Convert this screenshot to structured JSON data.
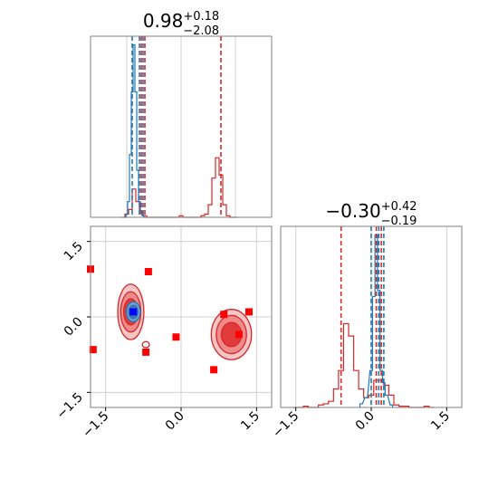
{
  "chart_data": [
    {
      "type": "histogram",
      "panel": "top-left (parameter 1 marginal)",
      "title": {
        "value": "0.98",
        "upper": "+0.18",
        "lower": "−2.08"
      },
      "xlim": [
        -2.5,
        2.5
      ],
      "grid": true,
      "series": [
        {
          "color": "#d62728",
          "x": [
            -1.6,
            -1.5,
            -1.4,
            -1.3,
            -1.2,
            -1.1,
            -1.0,
            -0.9,
            -0.8,
            -0.7,
            -0.6,
            -0.5,
            -0.4,
            -0.3,
            -0.2,
            -0.1,
            0.0,
            0.1,
            0.2,
            0.3,
            0.4,
            0.5,
            0.6,
            0.7,
            0.8,
            0.9,
            1.0,
            1.1,
            1.2,
            1.3,
            1.4,
            1.5
          ],
          "values": [
            0,
            2,
            5,
            18,
            10,
            3,
            1,
            0,
            0,
            0,
            0,
            0,
            0,
            0,
            0,
            0,
            1,
            0,
            0,
            0,
            0,
            0,
            1,
            2,
            8,
            25,
            38,
            27,
            8,
            1,
            0,
            0
          ]
        },
        {
          "color": "#1f77b4",
          "x": [
            -1.5,
            -1.45,
            -1.4,
            -1.35,
            -1.3,
            -1.25,
            -1.2,
            -1.15,
            -1.1,
            -1.05,
            -1.0
          ],
          "values": [
            2,
            10,
            40,
            80,
            110,
            80,
            30,
            10,
            4,
            1,
            0
          ]
        }
      ],
      "vlines": [
        {
          "color": "#d62728",
          "x": [
            -1.1,
            -1.0,
            1.1
          ]
        },
        {
          "color": "#1f77b4",
          "x": [
            -1.35,
            -1.15,
            -1.05
          ]
        }
      ]
    },
    {
      "type": "histogram",
      "panel": "bottom-right (parameter 2 marginal)",
      "title": {
        "value": "−0.30",
        "upper": "+0.42",
        "lower": "−0.19"
      },
      "xlim": [
        -1.8,
        1.8
      ],
      "xticks": [
        "−1.5",
        "0.0",
        "1.5"
      ],
      "grid": true,
      "series": [
        {
          "color": "#d62728",
          "x": [
            -1.5,
            -1.4,
            -1.3,
            -1.2,
            -1.1,
            -1.0,
            -0.9,
            -0.8,
            -0.7,
            -0.6,
            -0.5,
            -0.4,
            -0.3,
            -0.2,
            -0.1,
            0.0,
            0.1,
            0.2,
            0.3,
            0.4,
            0.5,
            0.6,
            0.7,
            0.8,
            0.9,
            1.0,
            1.1,
            1.2
          ],
          "values": [
            0,
            0,
            1,
            0,
            0,
            2,
            3,
            5,
            15,
            30,
            68,
            58,
            30,
            15,
            8,
            10,
            22,
            22,
            18,
            10,
            2,
            1,
            1,
            0,
            0,
            0,
            1,
            0
          ]
        },
        {
          "color": "#1f77b4",
          "x": [
            -0.2,
            -0.1,
            0.0,
            0.05,
            0.1,
            0.15,
            0.2,
            0.25,
            0.3,
            0.4
          ],
          "values": [
            3,
            8,
            30,
            90,
            140,
            95,
            30,
            20,
            10,
            2
          ]
        }
      ],
      "vlines": [
        {
          "color": "#d62728",
          "x": [
            -0.6,
            0.1,
            0.2
          ]
        },
        {
          "color": "#1f77b4",
          "x": [
            0.0,
            0.15,
            0.25
          ]
        }
      ]
    },
    {
      "type": "scatter",
      "panel": "bottom-left (2D contour / scatter)",
      "xlim": [
        -1.8,
        1.8
      ],
      "ylim": [
        -1.8,
        1.8
      ],
      "xticks": [
        "−1.5",
        "0.0",
        "1.5"
      ],
      "yticks": [
        "−1.5",
        "0.0",
        "1.5"
      ],
      "grid": true,
      "contours": [
        {
          "color": "#d62728",
          "cx": -1.0,
          "cy": 0.1,
          "rx": [
            0.26,
            0.2,
            0.14
          ],
          "ry": [
            0.55,
            0.4,
            0.26
          ]
        },
        {
          "color": "#d62728",
          "cx": 1.0,
          "cy": -0.35,
          "rx": [
            0.4,
            0.3,
            0.2
          ],
          "ry": [
            0.5,
            0.38,
            0.24
          ]
        },
        {
          "color": "#d62728",
          "cx": -0.7,
          "cy": -0.55,
          "rx": [
            0.07
          ],
          "ry": [
            0.06
          ]
        },
        {
          "color": "#d62728",
          "cx": 0.65,
          "cy": -1.05,
          "rx": [
            0.06
          ],
          "ry": [
            0.05
          ]
        },
        {
          "color": "#1f77b4",
          "cx": -0.95,
          "cy": 0.1,
          "rx": [
            0.14,
            0.09
          ],
          "ry": [
            0.2,
            0.13
          ]
        }
      ],
      "markers": {
        "red": {
          "color": "#ff0000",
          "x": [
            -1.8,
            -1.75,
            -0.65,
            -0.7,
            -0.1,
            0.65,
            0.85,
            1.15,
            1.35
          ],
          "y": [
            0.95,
            -0.65,
            0.9,
            -0.7,
            -0.4,
            -1.05,
            0.05,
            -0.35,
            0.1
          ]
        },
        "blue": {
          "color": "#0000ff",
          "x": [
            -0.95
          ],
          "y": [
            0.1
          ]
        }
      }
    }
  ]
}
